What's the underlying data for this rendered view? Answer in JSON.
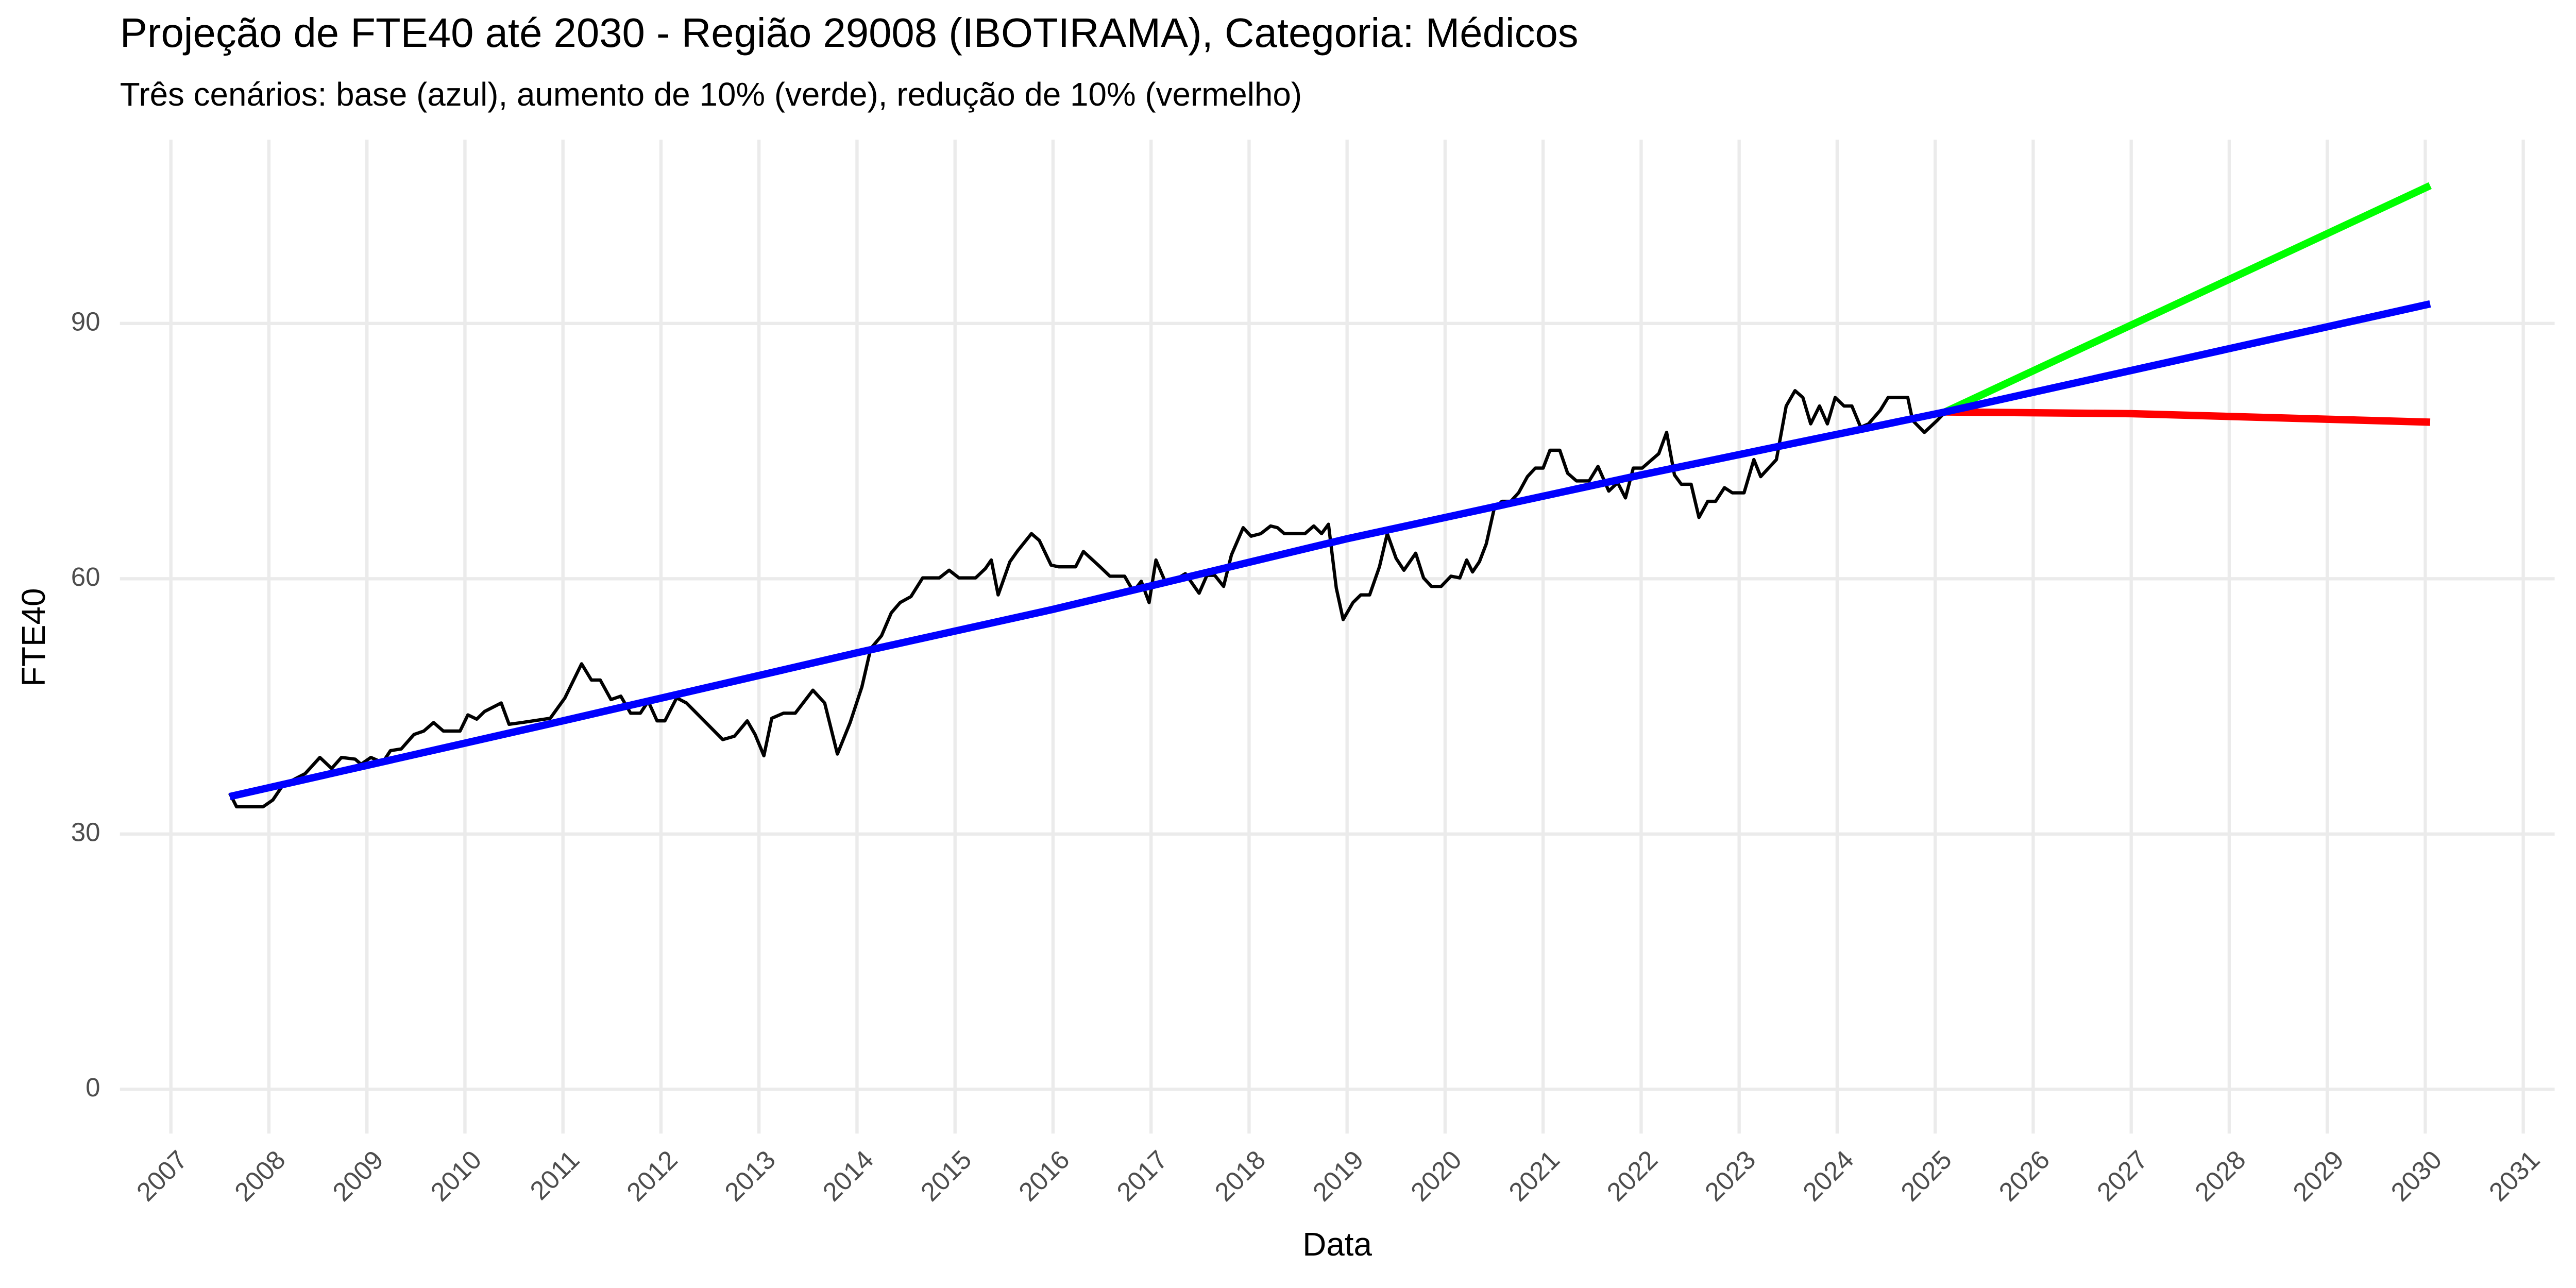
{
  "chart_data": {
    "type": "line",
    "title": "Projeção de FTE40 até 2030 - Região 29008 (IBOTIRAMA), Categoria: Médicos",
    "subtitle": "Três cenários: base (azul), aumento de 10% (verde), redução de 10% (vermelho)",
    "x_label": "Data",
    "y_label": "FTE40",
    "xlim": [
      2006.48,
      2031.32
    ],
    "ylim": [
      -5.2,
      111.6
    ],
    "xticks": [
      2007,
      2008,
      2009,
      2010,
      2011,
      2012,
      2013,
      2014,
      2015,
      2016,
      2017,
      2018,
      2019,
      2020,
      2021,
      2022,
      2023,
      2024,
      2025,
      2026,
      2027,
      2028,
      2029,
      2030,
      2031
    ],
    "yticks": [
      0,
      30,
      60,
      90
    ],
    "grid": true,
    "series": [
      {
        "color": "#000000",
        "x": [
          2007.6,
          2007.67,
          2007.94,
          2008.04,
          2008.14,
          2008.27,
          2008.37,
          2008.52,
          2008.64,
          2008.74,
          2008.88,
          2008.94,
          2009.04,
          2009.16,
          2009.24,
          2009.35,
          2009.48,
          2009.58,
          2009.68,
          2009.78,
          2009.95,
          2010.03,
          2010.12,
          2010.2,
          2010.37,
          2010.45,
          2010.58,
          2010.87,
          2011.02,
          2011.19,
          2011.29,
          2011.38,
          2011.49,
          2011.59,
          2011.69,
          2011.79,
          2011.87,
          2011.96,
          2012.04,
          2012.16,
          2012.26,
          2012.63,
          2012.75,
          2012.88,
          2012.96,
          2013.05,
          2013.13,
          2013.25,
          2013.37,
          2013.55,
          2013.67,
          2013.8,
          2013.93,
          2014.05,
          2014.14,
          2014.25,
          2014.35,
          2014.44,
          2014.55,
          2014.67,
          2014.84,
          2014.94,
          2015.04,
          2015.21,
          2015.31,
          2015.37,
          2015.44,
          2015.56,
          2015.64,
          2015.78,
          2015.86,
          2015.98,
          2016.06,
          2016.23,
          2016.31,
          2016.48,
          2016.58,
          2016.73,
          2016.82,
          2016.9,
          2016.98,
          2017.05,
          2017.15,
          2017.25,
          2017.35,
          2017.49,
          2017.57,
          2017.65,
          2017.74,
          2017.82,
          2017.94,
          2018.02,
          2018.12,
          2018.22,
          2018.29,
          2018.36,
          2018.57,
          2018.66,
          2018.74,
          2018.81,
          2018.89,
          2018.96,
          2019.06,
          2019.14,
          2019.23,
          2019.33,
          2019.41,
          2019.5,
          2019.58,
          2019.7,
          2019.78,
          2019.86,
          2019.96,
          2020.06,
          2020.15,
          2020.22,
          2020.28,
          2020.35,
          2020.42,
          2020.5,
          2020.58,
          2020.67,
          2020.75,
          2020.84,
          2020.92,
          2021.0,
          2021.07,
          2021.17,
          2021.25,
          2021.34,
          2021.47,
          2021.56,
          2021.67,
          2021.76,
          2021.84,
          2021.92,
          2022.01,
          2022.11,
          2022.18,
          2022.26,
          2022.34,
          2022.41,
          2022.51,
          2022.59,
          2022.68,
          2022.76,
          2022.85,
          2022.93,
          2023.05,
          2023.15,
          2023.22,
          2023.3,
          2023.38,
          2023.48,
          2023.57,
          2023.65,
          2023.73,
          2023.82,
          2023.9,
          2023.98,
          2024.07,
          2024.15,
          2024.24,
          2024.32,
          2024.44,
          2024.52,
          2024.72,
          2024.77,
          2024.89,
          2025.02,
          2025.12
        ],
        "values": [
          34.8,
          33.2,
          33.2,
          34,
          35.7,
          36.5,
          37.1,
          39,
          37.7,
          39,
          38.8,
          38.2,
          39,
          38.4,
          39.8,
          40,
          41.7,
          42.1,
          43.1,
          42.1,
          42.1,
          44,
          43.5,
          44.4,
          45.4,
          42.9,
          43.1,
          43.6,
          46,
          50,
          48.1,
          48.1,
          45.8,
          46.2,
          44.2,
          44.2,
          45.6,
          43.3,
          43.3,
          46,
          45.4,
          41.1,
          41.5,
          43.3,
          41.7,
          39.2,
          43.6,
          44.2,
          44.2,
          46.9,
          45.4,
          39.4,
          43.1,
          47.3,
          51.8,
          53.3,
          56,
          57.2,
          57.9,
          60.1,
          60.1,
          61,
          60.1,
          60.1,
          61.2,
          62.2,
          58.1,
          62,
          63.3,
          65.3,
          64.5,
          61.6,
          61.4,
          61.4,
          63.2,
          61.4,
          60.3,
          60.3,
          58.5,
          59.7,
          57.2,
          62.2,
          59.5,
          59.9,
          60.6,
          58.3,
          60.4,
          60.4,
          59.1,
          62.8,
          66,
          65,
          65.3,
          66.2,
          66,
          65.3,
          65.3,
          66.2,
          65.3,
          66.4,
          58.9,
          55.2,
          57.2,
          58.1,
          58.1,
          61.4,
          65.3,
          62.4,
          61,
          63,
          60.1,
          59.1,
          59.1,
          60.3,
          60.1,
          62.2,
          60.8,
          62,
          64.1,
          68.2,
          69.1,
          69.1,
          70.1,
          72,
          73,
          73,
          75.1,
          75.1,
          72.4,
          71.5,
          71.5,
          73.2,
          70.3,
          71.3,
          69.5,
          73,
          73,
          74,
          74.7,
          77.2,
          72.2,
          71.1,
          71.1,
          67.2,
          69.1,
          69.1,
          70.7,
          70.1,
          70.1,
          74,
          72,
          73,
          74,
          80.3,
          82.1,
          81.3,
          78.2,
          80.3,
          78.2,
          81.3,
          80.3,
          80.3,
          77.8,
          78.2,
          79.8,
          81.3,
          81.3,
          78.6,
          77.2,
          78.6,
          79.8
        ]
      },
      {
        "color": "#00ff00",
        "x": [
          2025.1,
          2030.05
        ],
        "values": [
          79.6,
          106.2
        ]
      },
      {
        "color": "#ff0000",
        "x": [
          2025.1,
          2027,
          2030.05
        ],
        "values": [
          79.6,
          79.4,
          78.4
        ]
      },
      {
        "color": "#0000ff",
        "x": [
          2007.6,
          2011,
          2014,
          2016,
          2019,
          2022,
          2025.1,
          2030.05
        ],
        "values": [
          34.4,
          43.3,
          51.3,
          56.4,
          64.7,
          72.2,
          79.6,
          92.3
        ]
      }
    ]
  }
}
